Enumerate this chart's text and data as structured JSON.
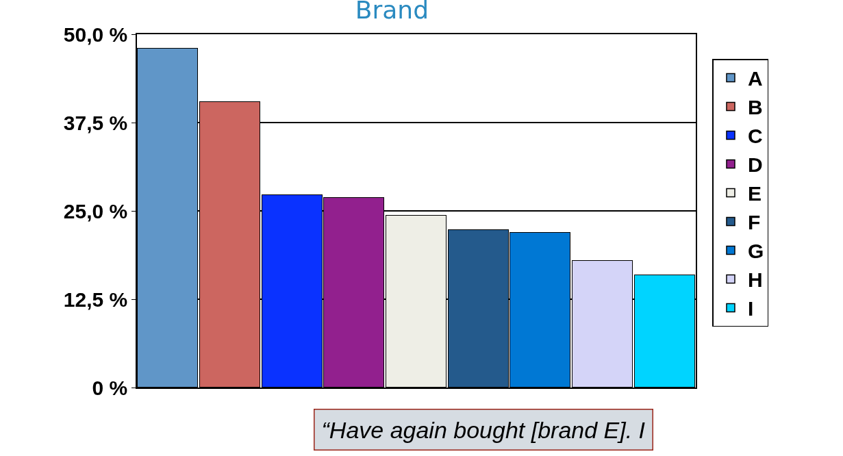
{
  "chart_data": {
    "type": "bar",
    "title": "Brand",
    "categories": [
      null,
      null,
      null,
      null,
      null,
      null,
      null,
      null,
      null
    ],
    "series": [
      {
        "name": "A",
        "color": "#6096c8",
        "values": [
          48.0,
          null,
          null,
          null,
          null,
          null,
          null,
          null,
          null
        ]
      },
      {
        "name": "B",
        "color": "#cc6660",
        "values": [
          null,
          40.4,
          null,
          null,
          null,
          null,
          null,
          null,
          null
        ]
      },
      {
        "name": "C",
        "color": "#0a32ff",
        "values": [
          null,
          null,
          27.2,
          null,
          null,
          null,
          null,
          null,
          null
        ]
      },
      {
        "name": "D",
        "color": "#92208e",
        "values": [
          null,
          null,
          null,
          26.8,
          null,
          null,
          null,
          null,
          null
        ]
      },
      {
        "name": "E",
        "color": "#eeeee6",
        "values": [
          null,
          null,
          null,
          null,
          24.3,
          null,
          null,
          null,
          null
        ]
      },
      {
        "name": "F",
        "color": "#245a8c",
        "values": [
          null,
          null,
          null,
          null,
          null,
          22.3,
          null,
          null,
          null
        ]
      },
      {
        "name": "G",
        "color": "#0078d4",
        "values": [
          null,
          null,
          null,
          null,
          null,
          null,
          21.9,
          null,
          null
        ]
      },
      {
        "name": "H",
        "color": "#d4d4f8",
        "values": [
          null,
          null,
          null,
          null,
          null,
          null,
          null,
          17.9,
          null
        ]
      },
      {
        "name": "I",
        "color": "#00d4ff",
        "values": [
          null,
          null,
          null,
          null,
          null,
          null,
          null,
          null,
          15.9
        ]
      }
    ],
    "ylim": [
      0,
      50
    ],
    "yticks": [
      {
        "value": 0,
        "label": "0 %"
      },
      {
        "value": 12.5,
        "label": "12,5 %"
      },
      {
        "value": 25,
        "label": "25,0 %"
      },
      {
        "value": 37.5,
        "label": "37,5 %"
      },
      {
        "value": 50,
        "label": "50,0 %"
      }
    ],
    "grid": "y",
    "legend": "right",
    "tick_labels": "y",
    "annotations": [
      "“Have again bought [brand E]. I"
    ]
  }
}
